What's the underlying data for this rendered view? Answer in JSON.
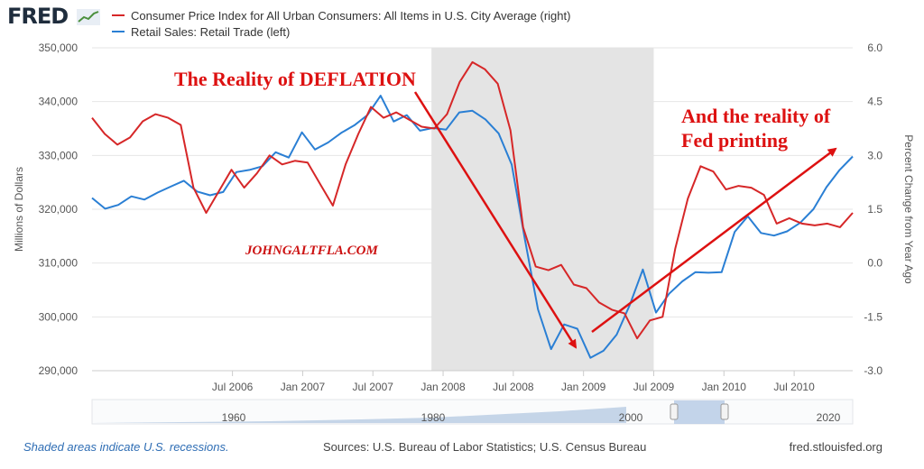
{
  "logo": {
    "text": "FRED"
  },
  "legend": [
    {
      "label": "Consumer Price Index for All Urban Consumers: All Items in U.S. City Average (right)",
      "color": "#d62728"
    },
    {
      "label": "Retail Sales: Retail Trade (left)",
      "color": "#2a7fd4"
    }
  ],
  "chart_data": {
    "type": "line",
    "x_start": 2005.5,
    "x_end": 2010.917,
    "x_ticks": [
      {
        "label": "Jul 2006",
        "x": 2006.5
      },
      {
        "label": "Jan 2007",
        "x": 2007.0
      },
      {
        "label": "Jul 2007",
        "x": 2007.5
      },
      {
        "label": "Jan 2008",
        "x": 2008.0
      },
      {
        "label": "Jul 2008",
        "x": 2008.5
      },
      {
        "label": "Jan 2009",
        "x": 2009.0
      },
      {
        "label": "Jul 2009",
        "x": 2009.5
      },
      {
        "label": "Jan 2010",
        "x": 2010.0
      },
      {
        "label": "Jul 2010",
        "x": 2010.5
      }
    ],
    "left_axis": {
      "title": "Millions of Dollars",
      "min": 290000,
      "max": 350000,
      "ticks": [
        "290,000",
        "300,000",
        "310,000",
        "320,000",
        "330,000",
        "340,000",
        "350,000"
      ],
      "tick_values": [
        290000,
        300000,
        310000,
        320000,
        330000,
        340000,
        350000
      ]
    },
    "right_axis": {
      "title": "Percent Change from Year Ago",
      "min": -3.0,
      "max": 6.0,
      "ticks": [
        "-3.0",
        "-1.5",
        "0.0",
        "1.5",
        "3.0",
        "4.5",
        "6.0"
      ],
      "tick_values": [
        -3.0,
        -1.5,
        0.0,
        1.5,
        3.0,
        4.5,
        6.0
      ]
    },
    "recession": {
      "start": 2007.917,
      "end": 2009.5
    },
    "series": [
      {
        "name": "Retail Sales: Retail Trade (left)",
        "axis": "left",
        "color": "#2a7fd4",
        "values": [
          322100,
          320100,
          320800,
          322400,
          321800,
          323100,
          324200,
          325300,
          323300,
          322600,
          323200,
          326900,
          327300,
          328000,
          330600,
          329600,
          334300,
          331100,
          332400,
          334200,
          335600,
          337500,
          341100,
          336300,
          337500,
          334600,
          335100,
          334800,
          338000,
          338300,
          336700,
          334100,
          328300,
          314500,
          301400,
          294000,
          298600,
          297800,
          292400,
          293700,
          296700,
          302200,
          308800,
          300800,
          304300,
          306600,
          308300,
          308200,
          308300,
          315800,
          318700,
          315600,
          315100,
          315900,
          317500,
          320000,
          324100,
          327300,
          329800
        ]
      },
      {
        "name": "Consumer Price Index for All Urban Consumers: All Items in U.S. City Average (right)",
        "axis": "right",
        "color": "#d62728",
        "values": [
          4.05,
          3.6,
          3.3,
          3.5,
          3.95,
          4.15,
          4.05,
          3.85,
          2.1,
          1.4,
          2.0,
          2.6,
          2.1,
          2.5,
          3.0,
          2.75,
          2.85,
          2.8,
          2.2,
          1.6,
          2.75,
          3.6,
          4.35,
          4.05,
          4.2,
          4.0,
          3.8,
          3.75,
          4.15,
          5.05,
          5.6,
          5.4,
          5.0,
          3.7,
          1.0,
          -0.1,
          -0.2,
          -0.05,
          -0.6,
          -0.7,
          -1.1,
          -1.3,
          -1.4,
          -2.1,
          -1.6,
          -1.5,
          0.4,
          1.8,
          2.7,
          2.55,
          2.05,
          2.15,
          2.1,
          1.9,
          1.1,
          1.25,
          1.1,
          1.05,
          1.1,
          1.0,
          1.4
        ]
      }
    ]
  },
  "annotations": {
    "deflation": "The Reality of DEFLATION",
    "fed_line1": "And the reality of",
    "fed_line2": "Fed printing",
    "watermark": "JOHNGALTFLA.COM"
  },
  "navigator": {
    "labels": [
      "1960",
      "1980",
      "2000",
      "2020"
    ]
  },
  "footer": {
    "left": "Shaded areas indicate U.S. recessions.",
    "center": "Sources: U.S. Bureau of Labor Statistics; U.S. Census Bureau",
    "right": "fred.stlouisfed.org"
  }
}
